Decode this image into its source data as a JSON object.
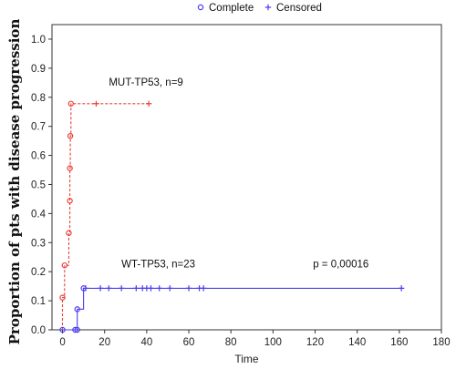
{
  "chart_data": {
    "type": "line",
    "title": "",
    "xlabel": "Time",
    "ylabel": "Proportion of pts with disease progression",
    "xlim": [
      -5,
      180
    ],
    "ylim": [
      0,
      1.05
    ],
    "xticks": [
      "0",
      "20",
      "40",
      "60",
      "80",
      "100",
      "120",
      "140",
      "160",
      "180"
    ],
    "yticks": [
      "0.0",
      "0.1",
      "0.2",
      "0.3",
      "0.4",
      "0.5",
      "0.6",
      "0.7",
      "0.8",
      "0.9",
      "1.0"
    ],
    "legend": {
      "placement": "top",
      "entries": [
        {
          "label": "Complete",
          "marker": "circle"
        },
        {
          "label": "Censored",
          "marker": "plus"
        }
      ]
    },
    "series": [
      {
        "name": "MUT-TP53, n=9",
        "color": "#e8403a",
        "line_style": "dashed",
        "step": [
          [
            0,
            0
          ],
          [
            0,
            0.111
          ],
          [
            1,
            0.111
          ],
          [
            1,
            0.222
          ],
          [
            3,
            0.222
          ],
          [
            3,
            0.333
          ],
          [
            3.5,
            0.333
          ],
          [
            3.5,
            0.444
          ],
          [
            3.5,
            0.556
          ],
          [
            3.7,
            0.556
          ],
          [
            3.7,
            0.667
          ],
          [
            4,
            0.667
          ],
          [
            4,
            0.778
          ],
          [
            41,
            0.778
          ]
        ],
        "complete_points": [
          [
            0,
            0.111
          ],
          [
            1,
            0.222
          ],
          [
            3,
            0.333
          ],
          [
            3.5,
            0.444
          ],
          [
            3.5,
            0.556
          ],
          [
            3.7,
            0.667
          ],
          [
            4,
            0.778
          ]
        ],
        "censored_points": [
          [
            16,
            0.778
          ],
          [
            41,
            0.778
          ]
        ]
      },
      {
        "name": "WT-TP53, n=23",
        "color": "#4a3cf0",
        "line_style": "solid",
        "step": [
          [
            0,
            0
          ],
          [
            7,
            0
          ],
          [
            7,
            0.071
          ],
          [
            10,
            0.071
          ],
          [
            10,
            0.143
          ],
          [
            161,
            0.143
          ]
        ],
        "complete_points": [
          [
            0,
            0
          ],
          [
            6,
            0
          ],
          [
            7,
            0
          ],
          [
            7,
            0.071
          ],
          [
            10,
            0.143
          ]
        ],
        "censored_points": [
          [
            11,
            0.143
          ],
          [
            18,
            0.143
          ],
          [
            22,
            0.143
          ],
          [
            28,
            0.143
          ],
          [
            35,
            0.143
          ],
          [
            38,
            0.143
          ],
          [
            40,
            0.143
          ],
          [
            42,
            0.143
          ],
          [
            46,
            0.143
          ],
          [
            51,
            0.143
          ],
          [
            60,
            0.143
          ],
          [
            65,
            0.143
          ],
          [
            67,
            0.143
          ],
          [
            161,
            0.143
          ]
        ]
      }
    ],
    "annotations": [
      {
        "text": "MUT-TP53, n=9",
        "x": 22,
        "y": 0.84
      },
      {
        "text": "WT-TP53, n=23",
        "x": 28,
        "y": 0.215
      },
      {
        "text": "p = 0,00016",
        "x": 119,
        "y": 0.215
      }
    ],
    "grid": false
  }
}
